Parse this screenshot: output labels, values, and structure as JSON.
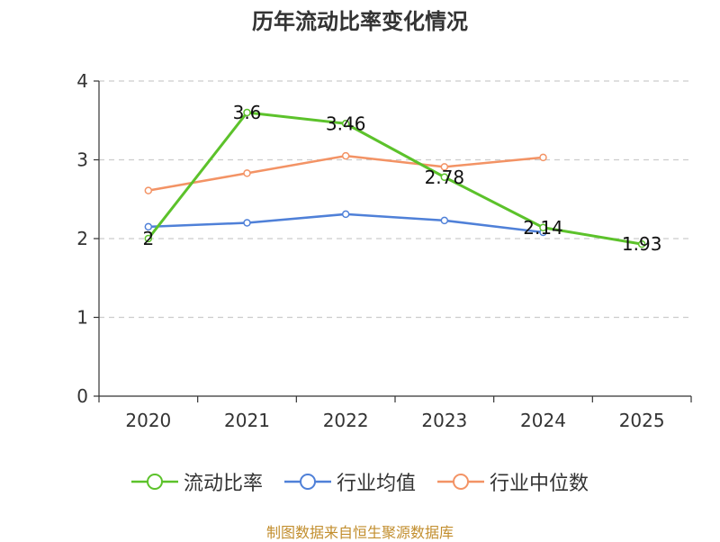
{
  "chart_data": {
    "type": "line",
    "title": "历年流动比率变化情况",
    "categories": [
      "2020",
      "2021",
      "2022",
      "2023",
      "2024",
      "2025"
    ],
    "ylim": [
      0,
      4
    ],
    "yticks": [
      "0",
      "1",
      "2",
      "3",
      "4"
    ],
    "grid": true,
    "legend_position": "bottom",
    "series": [
      {
        "name": "流动比率",
        "color": "#5cc22b",
        "values": [
          2,
          3.6,
          3.46,
          2.78,
          2.14,
          1.93
        ],
        "labels": [
          "2",
          "3.6",
          "3.46",
          "2.78",
          "2.14",
          "1.93"
        ]
      },
      {
        "name": "行业均值",
        "color": "#4f80d8",
        "values": [
          2.15,
          2.2,
          2.31,
          2.23,
          2.08,
          null
        ]
      },
      {
        "name": "行业中位数",
        "color": "#f39365",
        "values": [
          2.61,
          2.83,
          3.05,
          2.91,
          3.03,
          null
        ]
      }
    ]
  },
  "source": "制图数据来自恒生聚源数据库"
}
